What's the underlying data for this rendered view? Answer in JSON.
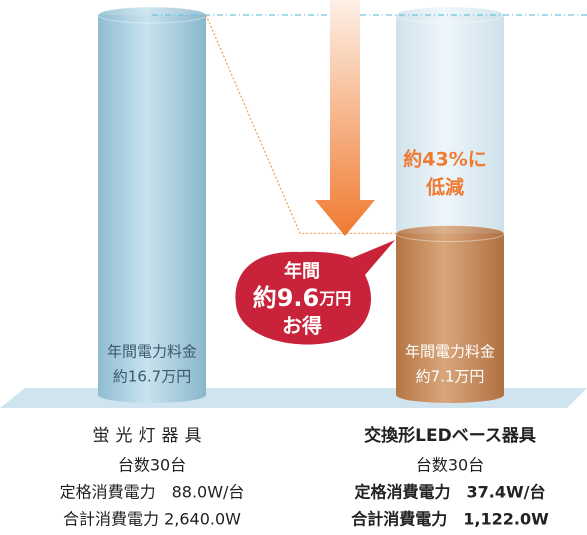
{
  "chart_data": {
    "type": "bar",
    "categories": [
      "蛍光灯器具",
      "交換形LEDベース器具"
    ],
    "values": [
      16.7,
      7.1
    ],
    "value_labels": [
      "約16.7万円",
      "約7.1万円"
    ],
    "value_label_titles": [
      "年間電力料金",
      "年間電力料金"
    ],
    "colors": [
      "#a9cfe0",
      "#c98a5a"
    ],
    "reduction": [
      "約43%に",
      "低減"
    ],
    "savings": [
      "年間",
      "約9.6",
      "万円",
      "お得"
    ],
    "specs": [
      [
        "台数30台",
        "定格消費電力　88.0W/台",
        "合計消費電力 2,640.0W"
      ],
      [
        "台数30台",
        "定格消費電力　37.4W/台",
        "合計消費電力　1,122.0W"
      ]
    ]
  }
}
